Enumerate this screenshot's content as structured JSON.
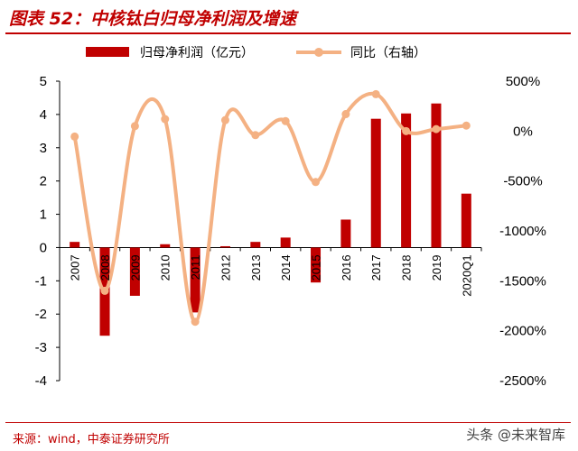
{
  "header": {
    "title": "图表 52：中核钛白归母净利润及增速"
  },
  "footer": {
    "source": "来源：wind，中泰证券研究所",
    "watermark": "头条 @未来智库"
  },
  "colors": {
    "bar": "#c00000",
    "line": "#f4b183",
    "accent": "#c00000"
  },
  "chart_data": {
    "type": "bar",
    "categories": [
      "2007",
      "2008",
      "2009",
      "2010",
      "2011",
      "2012",
      "2013",
      "2014",
      "2015",
      "2016",
      "2017",
      "2018",
      "2019",
      "2020Q1"
    ],
    "series": [
      {
        "name": "归母净利润（亿元）",
        "type": "bar",
        "axis": "left",
        "values": [
          0.17,
          -2.65,
          -1.45,
          0.1,
          -1.95,
          0.04,
          0.17,
          0.3,
          -1.05,
          0.84,
          3.87,
          4.03,
          4.33,
          1.62
        ]
      },
      {
        "name": "同比（右轴）",
        "type": "line",
        "axis": "right",
        "smooth": true,
        "values": [
          -55,
          -1600,
          50,
          120,
          -1910,
          110,
          -40,
          100,
          -510,
          170,
          370,
          0,
          20,
          55
        ]
      }
    ],
    "y_left": {
      "ylim": [
        -4,
        5
      ],
      "ticks": [
        "-4",
        "-3",
        "-2",
        "-1",
        "0",
        "1",
        "2",
        "3",
        "4",
        "5"
      ]
    },
    "y_right": {
      "ylim": [
        -2500,
        500
      ],
      "ticks": [
        "-2500%",
        "-2000%",
        "-1500%",
        "-1000%",
        "-500%",
        "0%",
        "500%"
      ]
    },
    "legend": "top",
    "grid": false
  }
}
